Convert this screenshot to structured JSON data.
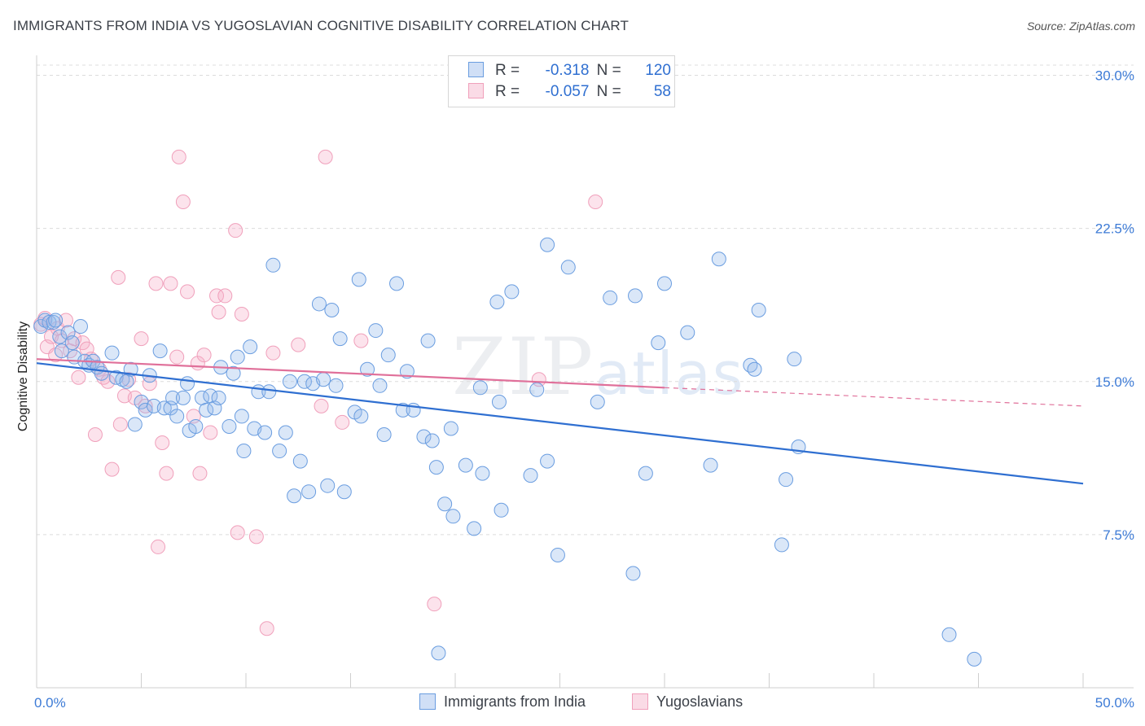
{
  "title": "IMMIGRANTS FROM INDIA VS YUGOSLAVIAN COGNITIVE DISABILITY CORRELATION CHART",
  "source": "Source: ZipAtlas.com",
  "watermark": {
    "zip": "ZIP",
    "atlas": "atlas"
  },
  "legend": {
    "india": {
      "r_label": "R =",
      "r_value": "-0.318",
      "n_label": "N =",
      "n_value": "120"
    },
    "yugo": {
      "r_label": "R =",
      "r_value": "-0.057",
      "n_label": "N =",
      "n_value": "58"
    }
  },
  "colors": {
    "india": "#6a9de0",
    "india_fill": "rgba(150,185,235,0.35)",
    "india_line": "#2f6fd1",
    "yugo": "#f0a0bb",
    "yugo_fill": "rgba(245,175,200,0.35)",
    "yugo_line": "#e0709a",
    "tick_text": "#3d7bd6"
  },
  "chart_data": {
    "type": "scatter",
    "xlabel": "",
    "ylabel": "Cognitive Disability",
    "xlim": [
      0,
      50
    ],
    "ylim": [
      0,
      30.5
    ],
    "x_ticks": [
      "0.0%",
      "50.0%"
    ],
    "y_ticks": [
      {
        "value": 7.5,
        "label": "7.5%"
      },
      {
        "value": 15.0,
        "label": "15.0%"
      },
      {
        "value": 22.5,
        "label": "22.5%"
      },
      {
        "value": 30.0,
        "label": "30.0%"
      }
    ],
    "grid": "horizontal dashed",
    "legend_bottom": [
      "Immigrants from India",
      "Yugoslavians"
    ],
    "series": [
      {
        "name": "Immigrants from India",
        "trend": {
          "x0": 0,
          "y0": 15.9,
          "x1": 50,
          "y1": 10.0
        },
        "points": [
          [
            0.2,
            17.7
          ],
          [
            0.4,
            18.0
          ],
          [
            0.6,
            17.9
          ],
          [
            0.8,
            17.9
          ],
          [
            0.9,
            18.0
          ],
          [
            1.1,
            17.2
          ],
          [
            1.2,
            16.5
          ],
          [
            1.5,
            17.4
          ],
          [
            1.7,
            16.9
          ],
          [
            1.8,
            16.2
          ],
          [
            2.1,
            17.7
          ],
          [
            2.3,
            16.0
          ],
          [
            2.5,
            15.8
          ],
          [
            2.7,
            16.0
          ],
          [
            2.9,
            15.7
          ],
          [
            3.1,
            15.4
          ],
          [
            3.6,
            16.4
          ],
          [
            3.8,
            15.2
          ],
          [
            4.1,
            15.1
          ],
          [
            4.3,
            15.0
          ],
          [
            4.5,
            15.6
          ],
          [
            4.7,
            12.9
          ],
          [
            5.0,
            14.0
          ],
          [
            5.2,
            13.6
          ],
          [
            5.4,
            15.3
          ],
          [
            5.6,
            13.8
          ],
          [
            5.9,
            16.5
          ],
          [
            6.1,
            13.7
          ],
          [
            6.4,
            13.7
          ],
          [
            6.5,
            14.2
          ],
          [
            6.7,
            13.3
          ],
          [
            7.0,
            14.2
          ],
          [
            7.2,
            14.9
          ],
          [
            7.3,
            12.6
          ],
          [
            7.6,
            12.8
          ],
          [
            7.9,
            14.2
          ],
          [
            8.1,
            13.6
          ],
          [
            8.3,
            14.3
          ],
          [
            8.5,
            13.7
          ],
          [
            8.7,
            14.2
          ],
          [
            8.8,
            15.7
          ],
          [
            9.2,
            12.8
          ],
          [
            9.4,
            15.4
          ],
          [
            9.6,
            16.2
          ],
          [
            9.8,
            13.3
          ],
          [
            9.9,
            11.6
          ],
          [
            10.2,
            16.7
          ],
          [
            10.4,
            12.7
          ],
          [
            10.6,
            14.5
          ],
          [
            10.9,
            12.5
          ],
          [
            11.1,
            14.5
          ],
          [
            11.3,
            20.7
          ],
          [
            11.6,
            11.6
          ],
          [
            11.9,
            12.5
          ],
          [
            12.1,
            15.0
          ],
          [
            12.3,
            9.4
          ],
          [
            12.6,
            11.1
          ],
          [
            12.8,
            15.0
          ],
          [
            13.0,
            9.6
          ],
          [
            13.2,
            14.9
          ],
          [
            13.5,
            18.8
          ],
          [
            13.7,
            15.1
          ],
          [
            13.9,
            9.9
          ],
          [
            14.1,
            18.5
          ],
          [
            14.3,
            14.8
          ],
          [
            14.5,
            17.1
          ],
          [
            14.7,
            9.6
          ],
          [
            15.2,
            13.5
          ],
          [
            15.4,
            20.0
          ],
          [
            15.5,
            13.3
          ],
          [
            15.8,
            15.6
          ],
          [
            16.2,
            17.5
          ],
          [
            16.4,
            14.8
          ],
          [
            16.6,
            12.4
          ],
          [
            16.8,
            16.3
          ],
          [
            17.2,
            19.8
          ],
          [
            17.5,
            13.6
          ],
          [
            17.7,
            15.5
          ],
          [
            18.0,
            13.6
          ],
          [
            18.5,
            12.3
          ],
          [
            18.7,
            17.0
          ],
          [
            18.9,
            12.1
          ],
          [
            19.1,
            10.8
          ],
          [
            19.2,
            1.7
          ],
          [
            19.5,
            9.0
          ],
          [
            19.8,
            12.7
          ],
          [
            19.9,
            8.4
          ],
          [
            20.5,
            10.9
          ],
          [
            20.9,
            7.8
          ],
          [
            21.2,
            14.7
          ],
          [
            21.3,
            10.5
          ],
          [
            22.0,
            18.9
          ],
          [
            22.1,
            14.0
          ],
          [
            22.2,
            8.7
          ],
          [
            22.7,
            19.4
          ],
          [
            23.6,
            10.4
          ],
          [
            23.9,
            14.6
          ],
          [
            24.4,
            21.7
          ],
          [
            24.4,
            11.1
          ],
          [
            24.9,
            6.5
          ],
          [
            25.4,
            20.6
          ],
          [
            26.8,
            14.0
          ],
          [
            27.4,
            19.1
          ],
          [
            28.5,
            5.6
          ],
          [
            28.6,
            19.2
          ],
          [
            29.1,
            10.5
          ],
          [
            29.7,
            16.9
          ],
          [
            30.0,
            19.8
          ],
          [
            31.1,
            17.4
          ],
          [
            32.2,
            10.9
          ],
          [
            32.6,
            21.0
          ],
          [
            34.1,
            15.8
          ],
          [
            34.3,
            15.6
          ],
          [
            34.5,
            18.5
          ],
          [
            35.6,
            7.0
          ],
          [
            35.8,
            10.2
          ],
          [
            36.2,
            16.1
          ],
          [
            36.4,
            11.8
          ],
          [
            43.6,
            2.6
          ],
          [
            44.8,
            1.4
          ]
        ]
      },
      {
        "name": "Yugoslavians",
        "trend": {
          "x0": 0,
          "y0": 16.1,
          "x1": 30,
          "y1": 14.7,
          "dash_to_x": 50,
          "dash_to_y": 13.8
        },
        "points": [
          [
            0.2,
            17.8
          ],
          [
            0.4,
            18.1
          ],
          [
            0.5,
            16.7
          ],
          [
            0.7,
            17.2
          ],
          [
            0.9,
            16.3
          ],
          [
            1.0,
            17.6
          ],
          [
            1.2,
            17.0
          ],
          [
            1.4,
            18.0
          ],
          [
            1.6,
            16.5
          ],
          [
            1.8,
            17.1
          ],
          [
            2.0,
            15.2
          ],
          [
            2.2,
            16.9
          ],
          [
            2.4,
            16.6
          ],
          [
            2.6,
            16.1
          ],
          [
            2.8,
            12.4
          ],
          [
            3.0,
            15.6
          ],
          [
            3.2,
            15.2
          ],
          [
            3.4,
            15.0
          ],
          [
            3.6,
            10.7
          ],
          [
            3.9,
            20.1
          ],
          [
            4.0,
            12.9
          ],
          [
            4.2,
            14.3
          ],
          [
            4.4,
            15.1
          ],
          [
            4.7,
            14.2
          ],
          [
            5.0,
            17.1
          ],
          [
            5.2,
            13.8
          ],
          [
            5.4,
            14.9
          ],
          [
            5.7,
            19.8
          ],
          [
            5.8,
            6.9
          ],
          [
            6.0,
            12.0
          ],
          [
            6.2,
            10.5
          ],
          [
            6.4,
            19.8
          ],
          [
            6.7,
            16.2
          ],
          [
            6.8,
            26.0
          ],
          [
            7.0,
            23.8
          ],
          [
            7.2,
            19.4
          ],
          [
            7.5,
            13.3
          ],
          [
            7.7,
            15.9
          ],
          [
            7.8,
            10.5
          ],
          [
            8.0,
            16.3
          ],
          [
            8.3,
            12.5
          ],
          [
            8.6,
            19.2
          ],
          [
            8.7,
            18.4
          ],
          [
            9.0,
            19.2
          ],
          [
            9.5,
            22.4
          ],
          [
            9.6,
            7.6
          ],
          [
            9.8,
            18.3
          ],
          [
            10.5,
            7.4
          ],
          [
            11.0,
            2.9
          ],
          [
            11.3,
            16.4
          ],
          [
            12.5,
            16.8
          ],
          [
            13.6,
            13.8
          ],
          [
            13.8,
            26.0
          ],
          [
            14.6,
            13.0
          ],
          [
            15.5,
            17.0
          ],
          [
            19.0,
            4.1
          ],
          [
            24.0,
            15.1
          ],
          [
            26.7,
            23.8
          ]
        ]
      }
    ]
  }
}
